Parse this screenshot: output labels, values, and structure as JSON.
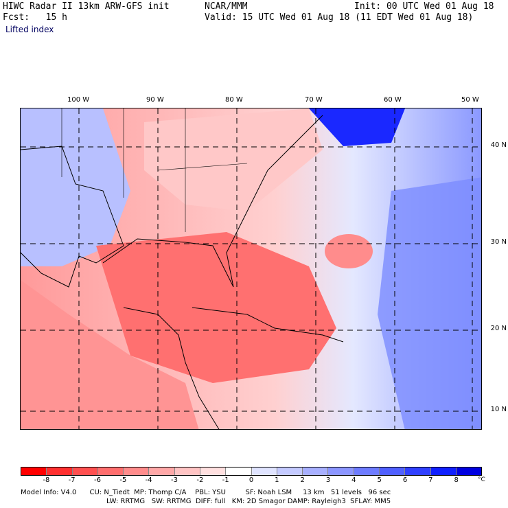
{
  "header": {
    "title_left": "HIWC Radar II 13km ARW-GFS init",
    "center": "NCAR/MMM",
    "init": "Init: 00 UTC Wed 01 Aug 18",
    "fcst": "Fcst:   15 h",
    "valid": "Valid: 15 UTC Wed 01 Aug 18 (11 EDT Wed 01 Aug 18)",
    "field": "Lifted index"
  },
  "map": {
    "lon_labels": [
      "100 W",
      "90 W",
      "80 W",
      "70 W",
      "60 W",
      "50 W"
    ],
    "lat_labels": [
      "40 N",
      "30 N",
      "20 N",
      "10 N"
    ]
  },
  "colorbar": {
    "ticks": [
      "-8",
      "-7",
      "-6",
      "-5",
      "-4",
      "-3",
      "-2",
      "-1",
      "0",
      "1",
      "2",
      "3",
      "4",
      "5",
      "6",
      "7",
      "8"
    ],
    "unit": "°C",
    "colors": [
      "#ff0000",
      "#ff3030",
      "#ff5050",
      "#ff6e6e",
      "#ff8c8c",
      "#ffa8a8",
      "#ffc4c4",
      "#ffe0e0",
      "#ffffff",
      "#e0e4ff",
      "#c4caff",
      "#a8b0ff",
      "#8c96ff",
      "#6e7cff",
      "#5060ff",
      "#3040ff",
      "#1020ff",
      "#0000e0"
    ]
  },
  "footer": {
    "line1": "Model Info: V4.0      CU: N_Tiedt  MP: Thomp C/A    PBL: YSU         SF: Noah LSM     13 km   51 levels   96 sec",
    "line2": "LW: RRTMG   SW: RRTMG  DIFF: full   KM: 2D Smagor DAMP: Rayleigh3  SFLAY: MM5"
  }
}
